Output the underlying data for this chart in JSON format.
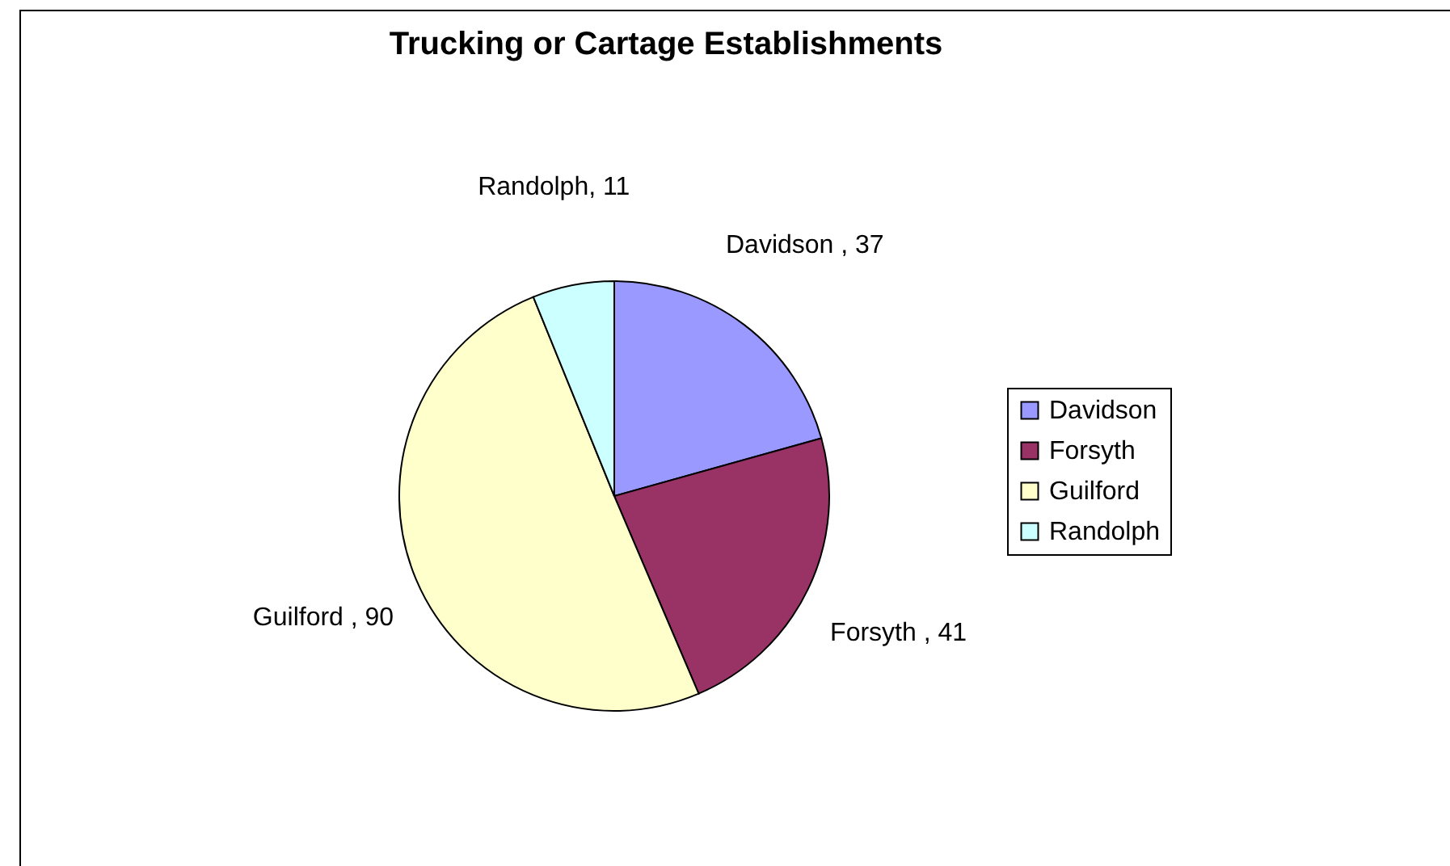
{
  "chart_data": {
    "type": "pie",
    "title": "Trucking or Cartage Establishments",
    "categories": [
      "Davidson",
      "Forsyth",
      "Guilford",
      "Randolph"
    ],
    "values": [
      37,
      41,
      90,
      11
    ],
    "colors": [
      "#9999ff",
      "#993366",
      "#ffffcc",
      "#ccffff"
    ],
    "value_labels": [
      "Davidson , 37",
      "Forsyth , 41",
      "Guilford , 90",
      "Randolph, 11"
    ],
    "legend": "right"
  }
}
